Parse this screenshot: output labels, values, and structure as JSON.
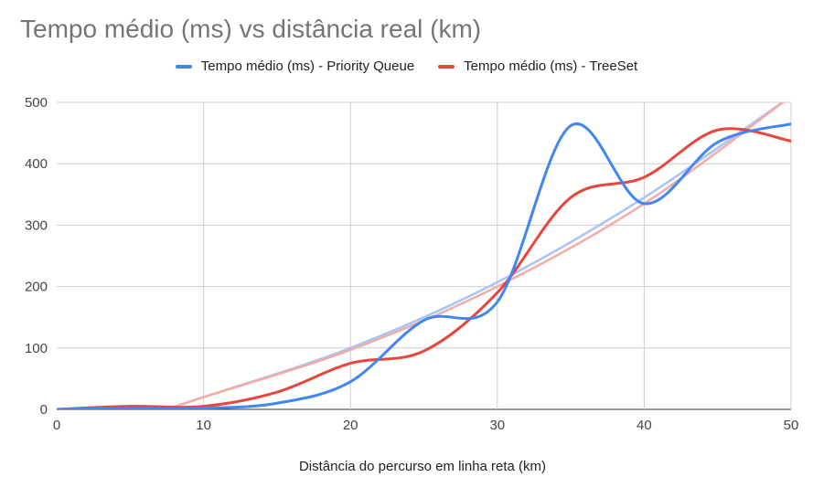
{
  "chart_data": {
    "type": "line",
    "title": "Tempo médio (ms) vs distância real (km)",
    "xlabel": "Distância do percurso em linha reta (km)",
    "ylabel": "",
    "xlim": [
      0,
      50
    ],
    "ylim": [
      0,
      500
    ],
    "xticks": [
      "0",
      "10",
      "20",
      "30",
      "40",
      "50"
    ],
    "yticks": [
      "0",
      "100",
      "200",
      "300",
      "400",
      "500"
    ],
    "grid": true,
    "legend_position": "top-center",
    "series": [
      {
        "name": "Tempo médio (ms) - Priority Queue",
        "color": "#4285f4",
        "x": [
          0,
          5,
          10,
          15,
          20,
          25,
          30,
          35,
          40,
          45,
          50
        ],
        "y": [
          0,
          2,
          2,
          10,
          45,
          145,
          175,
          462,
          335,
          435,
          465
        ]
      },
      {
        "name": "Tempo médio (ms) - TreeSet",
        "color": "#e8453c",
        "x": [
          0,
          5,
          10,
          15,
          20,
          25,
          30,
          35,
          40,
          45,
          50
        ],
        "y": [
          0,
          5,
          5,
          28,
          75,
          95,
          190,
          345,
          378,
          455,
          437
        ]
      }
    ],
    "trendlines": [
      {
        "series": "Tempo médio (ms) - Priority Queue",
        "color": "#a9c4f5",
        "x": [
          7.5,
          10,
          20,
          30,
          40,
          50
        ],
        "y": [
          0,
          20,
          100,
          207,
          345,
          510
        ]
      },
      {
        "series": "Tempo médio (ms) - TreeSet",
        "color": "#f3aba6",
        "x": [
          7.5,
          10,
          20,
          30,
          40,
          50
        ],
        "y": [
          0,
          20,
          97,
          200,
          335,
          510
        ]
      }
    ]
  }
}
